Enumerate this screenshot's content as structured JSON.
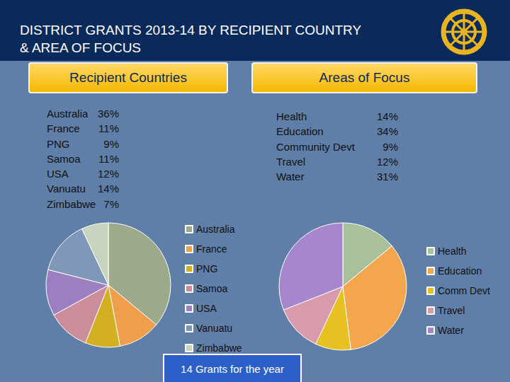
{
  "title": [
    "DISTRICT GRANTS 2013-14 BY RECIPIENT COUNTRY",
    "& AREA OF FOCUS"
  ],
  "note": "14 Grants for the year",
  "chart_data": [
    {
      "type": "pie",
      "title": "Recipient Countries",
      "categories": [
        "Australia",
        "France",
        "PNG",
        "Samoa",
        "USA",
        "Vanuatu",
        "Zimbabwe"
      ],
      "list_labels": [
        "Australia",
        "France",
        "PNG",
        "Samoa",
        "USA",
        "Vanuatu",
        "Zimbabwe"
      ],
      "values": [
        36,
        11,
        9,
        11,
        12,
        14,
        7
      ],
      "value_labels": [
        "36%",
        "11%",
        "9%",
        "11%",
        "12%",
        "14%",
        "7%"
      ],
      "colors": [
        "#9ca98b",
        "#ef9f4c",
        "#d3af22",
        "#cc8d9b",
        "#9c7fc1",
        "#7f97b9",
        "#c9d4bf"
      ],
      "legend": "right",
      "data_labels": false
    },
    {
      "type": "pie",
      "title": "Areas of Focus",
      "categories": [
        "Health",
        "Education",
        "Comm Devt",
        "Travel",
        "Water"
      ],
      "list_labels": [
        "Health",
        "Education",
        "Community Devt",
        "Travel",
        "Water"
      ],
      "values": [
        14,
        34,
        9,
        12,
        31
      ],
      "value_labels": [
        "14%",
        "34%",
        "9%",
        "12%",
        "31%"
      ],
      "colors": [
        "#a9c19b",
        "#f4a64d",
        "#e7c022",
        "#d99bab",
        "#a686cd"
      ],
      "legend": "right",
      "data_labels": false
    }
  ]
}
